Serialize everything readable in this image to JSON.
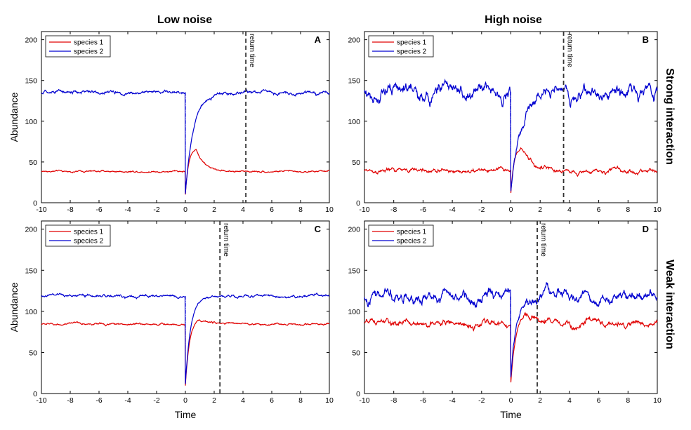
{
  "figure": {
    "col_titles": [
      "Low noise",
      "High noise"
    ],
    "row_titles": [
      "Strong interaction",
      "Weak interaction"
    ],
    "colors": {
      "species1": "#e00000",
      "species2": "#0000d0",
      "axis": "#000000",
      "return_line": "#333333"
    }
  },
  "chart_data": [
    {
      "panel": "A",
      "type": "line",
      "noise": "low",
      "interaction": "strong",
      "xlabel": "",
      "ylabel": "Abundance",
      "xlim": [
        -10,
        10
      ],
      "ylim": [
        0,
        210
      ],
      "xticks": [
        -10,
        -8,
        -6,
        -4,
        -2,
        0,
        2,
        4,
        6,
        8,
        10
      ],
      "yticks": [
        0,
        50,
        100,
        150,
        200
      ],
      "legend": [
        "species 1",
        "species 2"
      ],
      "legend_loc": "top-left",
      "annotation": "return time",
      "return_time": 4.2,
      "series": [
        {
          "name": "species 1",
          "baseline": 38.5,
          "noise_sd": 0.7,
          "start": 10,
          "peak": 66,
          "peak_t": 0.75,
          "rise": 0.22,
          "decay": 0.55
        },
        {
          "name": "species 2",
          "baseline": 135.5,
          "noise_sd": 1.4,
          "start": 11,
          "rise": 0.55
        }
      ]
    },
    {
      "panel": "B",
      "type": "line",
      "noise": "high",
      "interaction": "strong",
      "xlabel": "",
      "ylabel": "",
      "xlim": [
        -10,
        10
      ],
      "ylim": [
        0,
        210
      ],
      "xticks": [
        -10,
        -8,
        -6,
        -4,
        -2,
        0,
        2,
        4,
        6,
        8,
        10
      ],
      "yticks": [
        0,
        50,
        100,
        150,
        200
      ],
      "legend": [
        "species 1",
        "species 2"
      ],
      "legend_loc": "top-left",
      "annotation": "return time",
      "return_time": 3.6,
      "series": [
        {
          "name": "species 1",
          "baseline": 39,
          "noise_sd": 2.2,
          "start": 12,
          "peak": 69,
          "peak_t": 0.75,
          "rise": 0.22,
          "decay": 0.6
        },
        {
          "name": "species 2",
          "baseline": 136,
          "noise_sd": 6.5,
          "start": 14,
          "rise": 0.6
        }
      ]
    },
    {
      "panel": "C",
      "type": "line",
      "noise": "low",
      "interaction": "weak",
      "xlabel": "Time",
      "ylabel": "Abundance",
      "xlim": [
        -10,
        10
      ],
      "ylim": [
        0,
        210
      ],
      "xticks": [
        -10,
        -8,
        -6,
        -4,
        -2,
        0,
        2,
        4,
        6,
        8,
        10
      ],
      "yticks": [
        0,
        50,
        100,
        150,
        200
      ],
      "legend": [
        "species 1",
        "species 2"
      ],
      "legend_loc": "top-left",
      "annotation": "return time",
      "return_time": 2.4,
      "series": [
        {
          "name": "species 1",
          "baseline": 84.5,
          "noise_sd": 0.8,
          "start": 10,
          "peak": 90,
          "peak_t": 0.9,
          "rise": 0.3,
          "decay": 0.9
        },
        {
          "name": "species 2",
          "baseline": 118.5,
          "noise_sd": 1.1,
          "start": 12,
          "rise": 0.38
        }
      ]
    },
    {
      "panel": "D",
      "type": "line",
      "noise": "high",
      "interaction": "weak",
      "xlabel": "Time",
      "ylabel": "",
      "xlim": [
        -10,
        10
      ],
      "ylim": [
        0,
        210
      ],
      "xticks": [
        -10,
        -8,
        -6,
        -4,
        -2,
        0,
        2,
        4,
        6,
        8,
        10
      ],
      "yticks": [
        0,
        50,
        100,
        150,
        200
      ],
      "legend": [
        "species 1",
        "species 2"
      ],
      "legend_loc": "top-left",
      "annotation": "return time",
      "return_time": 1.8,
      "series": [
        {
          "name": "species 1",
          "baseline": 85,
          "noise_sd": 3.0,
          "start": 14,
          "peak": 92,
          "peak_t": 0.95,
          "rise": 0.32,
          "decay": 0.9
        },
        {
          "name": "species 2",
          "baseline": 118,
          "noise_sd": 5.5,
          "start": 18,
          "rise": 0.4
        }
      ]
    }
  ]
}
